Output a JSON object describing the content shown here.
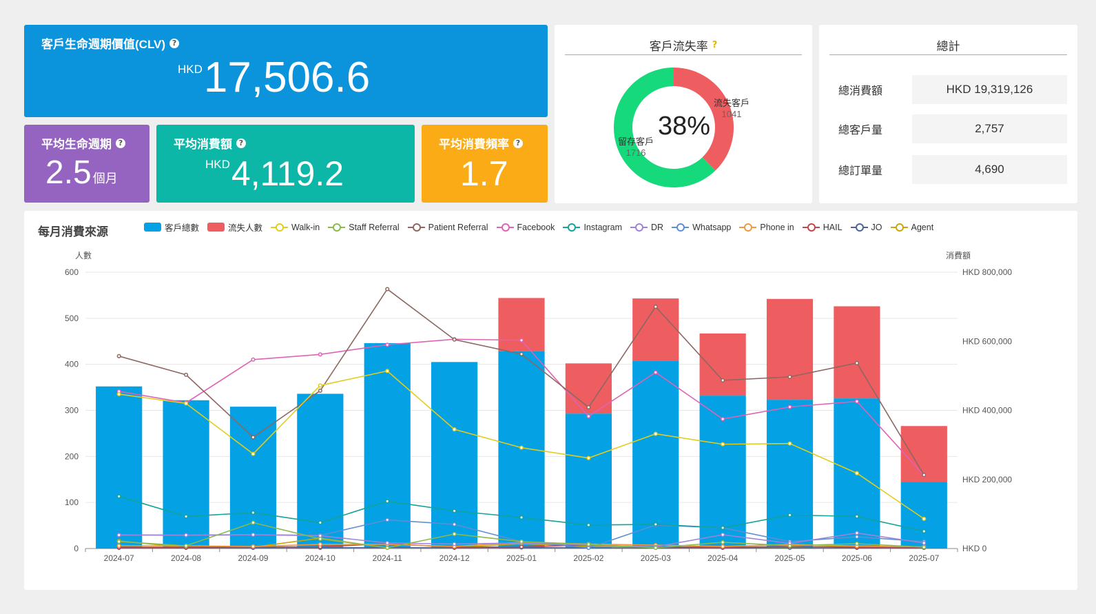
{
  "clv": {
    "title": "客戶生命週期價值(CLV)",
    "unit": "HKD",
    "value": "17,506.6"
  },
  "lifespan": {
    "title": "平均生命週期",
    "value": "2.5",
    "unit": "個月"
  },
  "avg_spend": {
    "title": "平均消費額",
    "unit": "HKD",
    "value": "4,119.2"
  },
  "avg_freq": {
    "title": "平均消費頻率",
    "value": "1.7"
  },
  "help_icon": "?",
  "churn": {
    "title": "客戶流失率",
    "center_label": "38%",
    "churned_label": "流失客戶",
    "churned_value": 1041,
    "retained_label": "留存客戶",
    "retained_value": 1716,
    "colors": {
      "churned": "#ee5d60",
      "retained": "#15d97a"
    }
  },
  "totals": {
    "title": "總計",
    "rows": [
      {
        "label": "總消費額",
        "value": "HKD 19,319,126"
      },
      {
        "label": "總客戶量",
        "value": "2,757"
      },
      {
        "label": "總訂單量",
        "value": "4,690"
      }
    ]
  },
  "monthly": {
    "title": "每月消費來源",
    "legend": [
      {
        "name": "客戶總數",
        "kind": "bar",
        "color": "#04a1e4"
      },
      {
        "name": "流失人數",
        "kind": "bar",
        "color": "#ee5d60"
      },
      {
        "name": "Walk-in",
        "kind": "line",
        "color": "#e3cc1c"
      },
      {
        "name": "Staff Referral",
        "kind": "line",
        "color": "#8bb94b"
      },
      {
        "name": "Patient Referral",
        "kind": "line",
        "color": "#8d6761"
      },
      {
        "name": "Facebook",
        "kind": "line",
        "color": "#e062b5"
      },
      {
        "name": "Instagram",
        "kind": "line",
        "color": "#12a39a"
      },
      {
        "name": "DR",
        "kind": "line",
        "color": "#9d84d9"
      },
      {
        "name": "Whatsapp",
        "kind": "line",
        "color": "#5d8fd6"
      },
      {
        "name": "Phone in",
        "kind": "line",
        "color": "#f09a3c"
      },
      {
        "name": "HAIL",
        "kind": "line",
        "color": "#c4454b"
      },
      {
        "name": "JO",
        "kind": "line",
        "color": "#4c6595"
      },
      {
        "name": "Agent",
        "kind": "line",
        "color": "#c9a60a"
      }
    ]
  },
  "chart_data": {
    "type": "bar",
    "categories": [
      "2024-07",
      "2024-08",
      "2024-09",
      "2024-10",
      "2024-11",
      "2024-12",
      "2025-01",
      "2025-02",
      "2025-03",
      "2025-04",
      "2025-05",
      "2025-06",
      "2025-07"
    ],
    "y_left": {
      "label": "人數",
      "range": [
        0,
        600
      ],
      "ticks": [
        0,
        100,
        200,
        300,
        400,
        500,
        600
      ]
    },
    "y_right": {
      "label": "消費額",
      "range": [
        0,
        800000
      ],
      "ticks": [
        "HKD 0",
        "HKD 200,000",
        "HKD 400,000",
        "HKD 600,000",
        "HKD 800,000"
      ]
    },
    "stacked_bars": [
      {
        "name": "客戶總數",
        "axis": "left",
        "values": [
          352,
          322,
          308,
          336,
          446,
          405,
          429,
          293,
          408,
          332,
          323,
          326,
          145
        ]
      },
      {
        "name": "流失人數",
        "axis": "left",
        "values": [
          0,
          0,
          0,
          0,
          0,
          0,
          115,
          109,
          135,
          135,
          219,
          200,
          121
        ]
      }
    ],
    "series": [
      {
        "name": "Walk-in",
        "axis": "right",
        "values": [
          447000,
          420000,
          274000,
          472000,
          514000,
          345000,
          292000,
          262000,
          332000,
          302000,
          304000,
          218000,
          86000
        ]
      },
      {
        "name": "Staff Referral",
        "axis": "right",
        "values": [
          20000,
          8000,
          75000,
          28000,
          2000,
          42000,
          20000,
          12000,
          2000,
          18000,
          8000,
          14000,
          4000
        ]
      },
      {
        "name": "Patient Referral",
        "axis": "right",
        "values": [
          557000,
          503000,
          322000,
          457000,
          751000,
          605000,
          563000,
          409000,
          700000,
          487000,
          497000,
          537000,
          213000
        ]
      },
      {
        "name": "Facebook",
        "axis": "right",
        "values": [
          455000,
          422000,
          547000,
          562000,
          590000,
          606000,
          603000,
          383000,
          510000,
          375000,
          410000,
          426000,
          212000
        ]
      },
      {
        "name": "Instagram",
        "axis": "right",
        "values": [
          151000,
          93000,
          104000,
          75000,
          137000,
          109000,
          90000,
          68000,
          70000,
          60000,
          97000,
          93000,
          50000
        ]
      },
      {
        "name": "DR",
        "axis": "right",
        "values": [
          39000,
          39000,
          40000,
          37000,
          16000,
          13000,
          16000,
          10000,
          5000,
          40000,
          15000,
          45000,
          16000
        ]
      },
      {
        "name": "Whatsapp",
        "axis": "right",
        "values": [
          40000,
          38000,
          40000,
          38000,
          83000,
          70000,
          20000,
          2000,
          68000,
          60000,
          20000,
          34000,
          20000
        ]
      },
      {
        "name": "Phone in",
        "axis": "right",
        "values": [
          8000,
          8000,
          6000,
          12000,
          12000,
          6000,
          18000,
          13000,
          10000,
          6000,
          12000,
          7000,
          5000
        ]
      },
      {
        "name": "HAIL",
        "axis": "right",
        "values": [
          4000,
          4000,
          5000,
          5000,
          14000,
          4000,
          5000,
          10000,
          5000,
          4000,
          6000,
          4000,
          4000
        ]
      },
      {
        "name": "JO",
        "axis": "right",
        "values": [
          2000,
          2000,
          2000,
          2000,
          3000,
          2000,
          3000,
          2000,
          2000,
          2000,
          2000,
          2000,
          2000
        ]
      },
      {
        "name": "Agent",
        "axis": "right",
        "values": [
          22000,
          3000,
          4000,
          30000,
          2000,
          3000,
          14000,
          6000,
          4000,
          3000,
          4000,
          8000,
          3000
        ]
      }
    ]
  }
}
